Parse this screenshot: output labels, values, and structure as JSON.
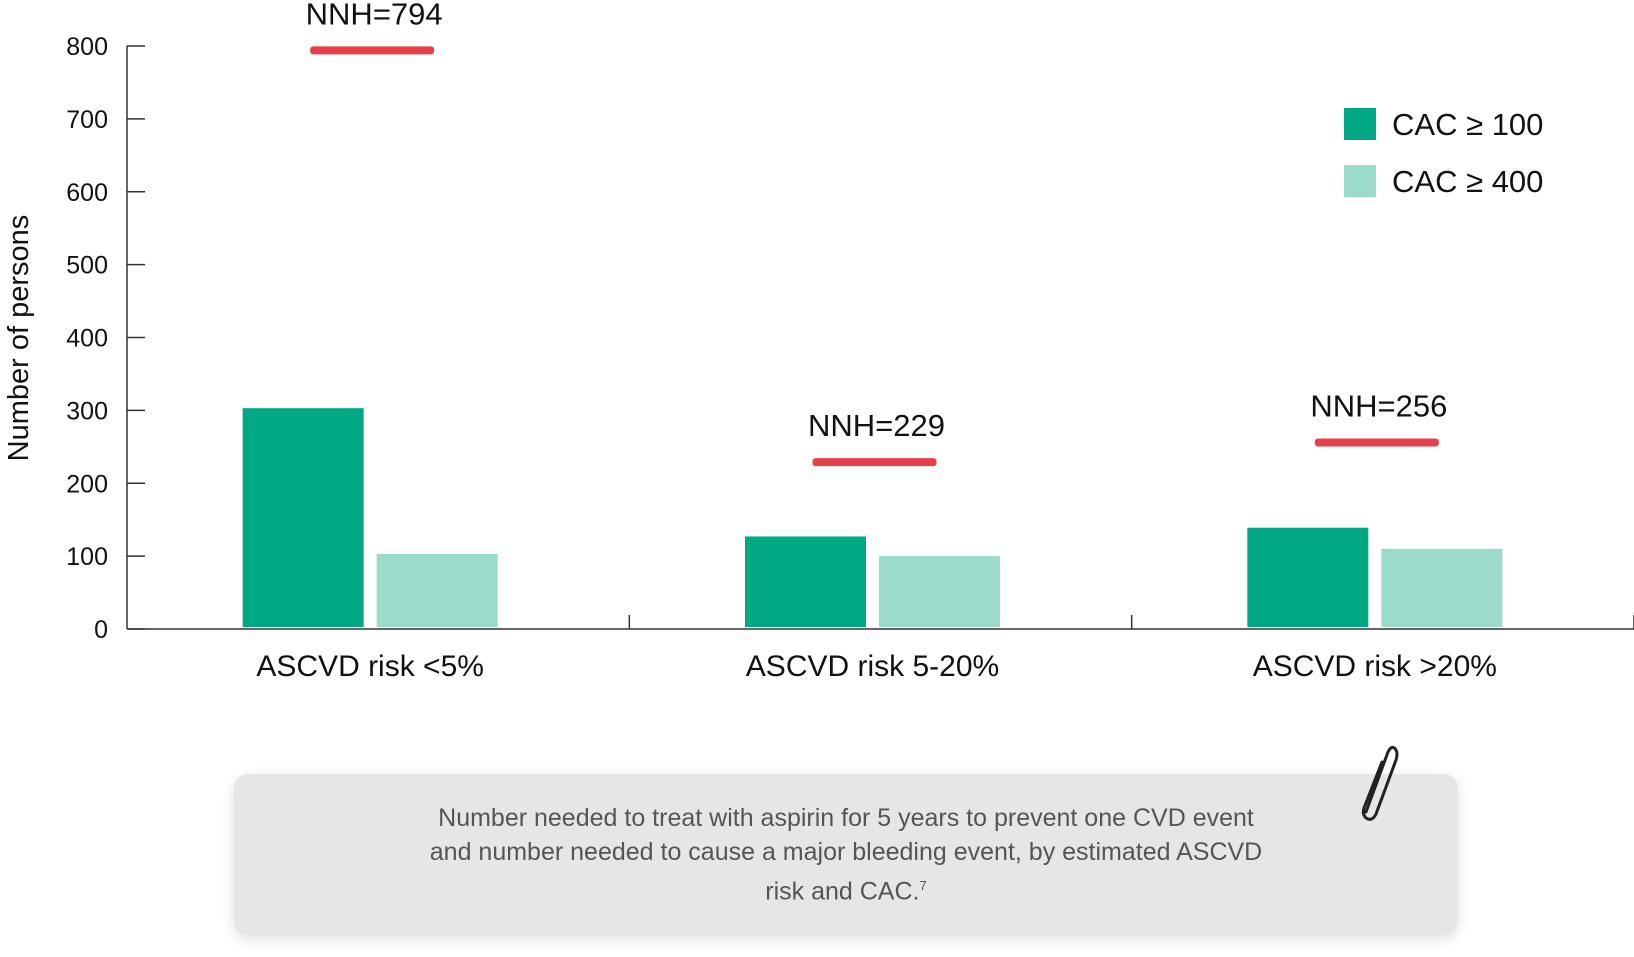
{
  "chart_data": {
    "type": "bar",
    "title": "",
    "xlabel": "",
    "ylabel": "Number of persons",
    "ylim": [
      0,
      800
    ],
    "yticks": [
      0,
      100,
      200,
      300,
      400,
      500,
      600,
      700,
      800
    ],
    "categories": [
      "ASCVD risk <5%",
      "ASCVD risk 5-20%",
      "ASCVD risk >20%"
    ],
    "series": [
      {
        "name": "CAC ≥ 100",
        "color": "#00a884",
        "values": [
          303,
          127,
          139
        ]
      },
      {
        "name": "CAC ≥ 400",
        "color": "#9adbcc",
        "values": [
          103,
          100,
          110
        ]
      }
    ],
    "nnh": {
      "color": "#e8404a",
      "labels": [
        "NNH=794",
        "NNH=229",
        "NNH=256"
      ],
      "values": [
        794,
        229,
        256
      ]
    },
    "legend_position": "top-right",
    "grid": false
  },
  "caption": {
    "text": "Number needed to treat with aspirin for 5 years to prevent one CVD event and number needed to cause a major bleeding event, by estimated ASCVD risk and CAC.",
    "superscript": "7"
  },
  "icons": {
    "attachment": "paperclip-icon"
  }
}
